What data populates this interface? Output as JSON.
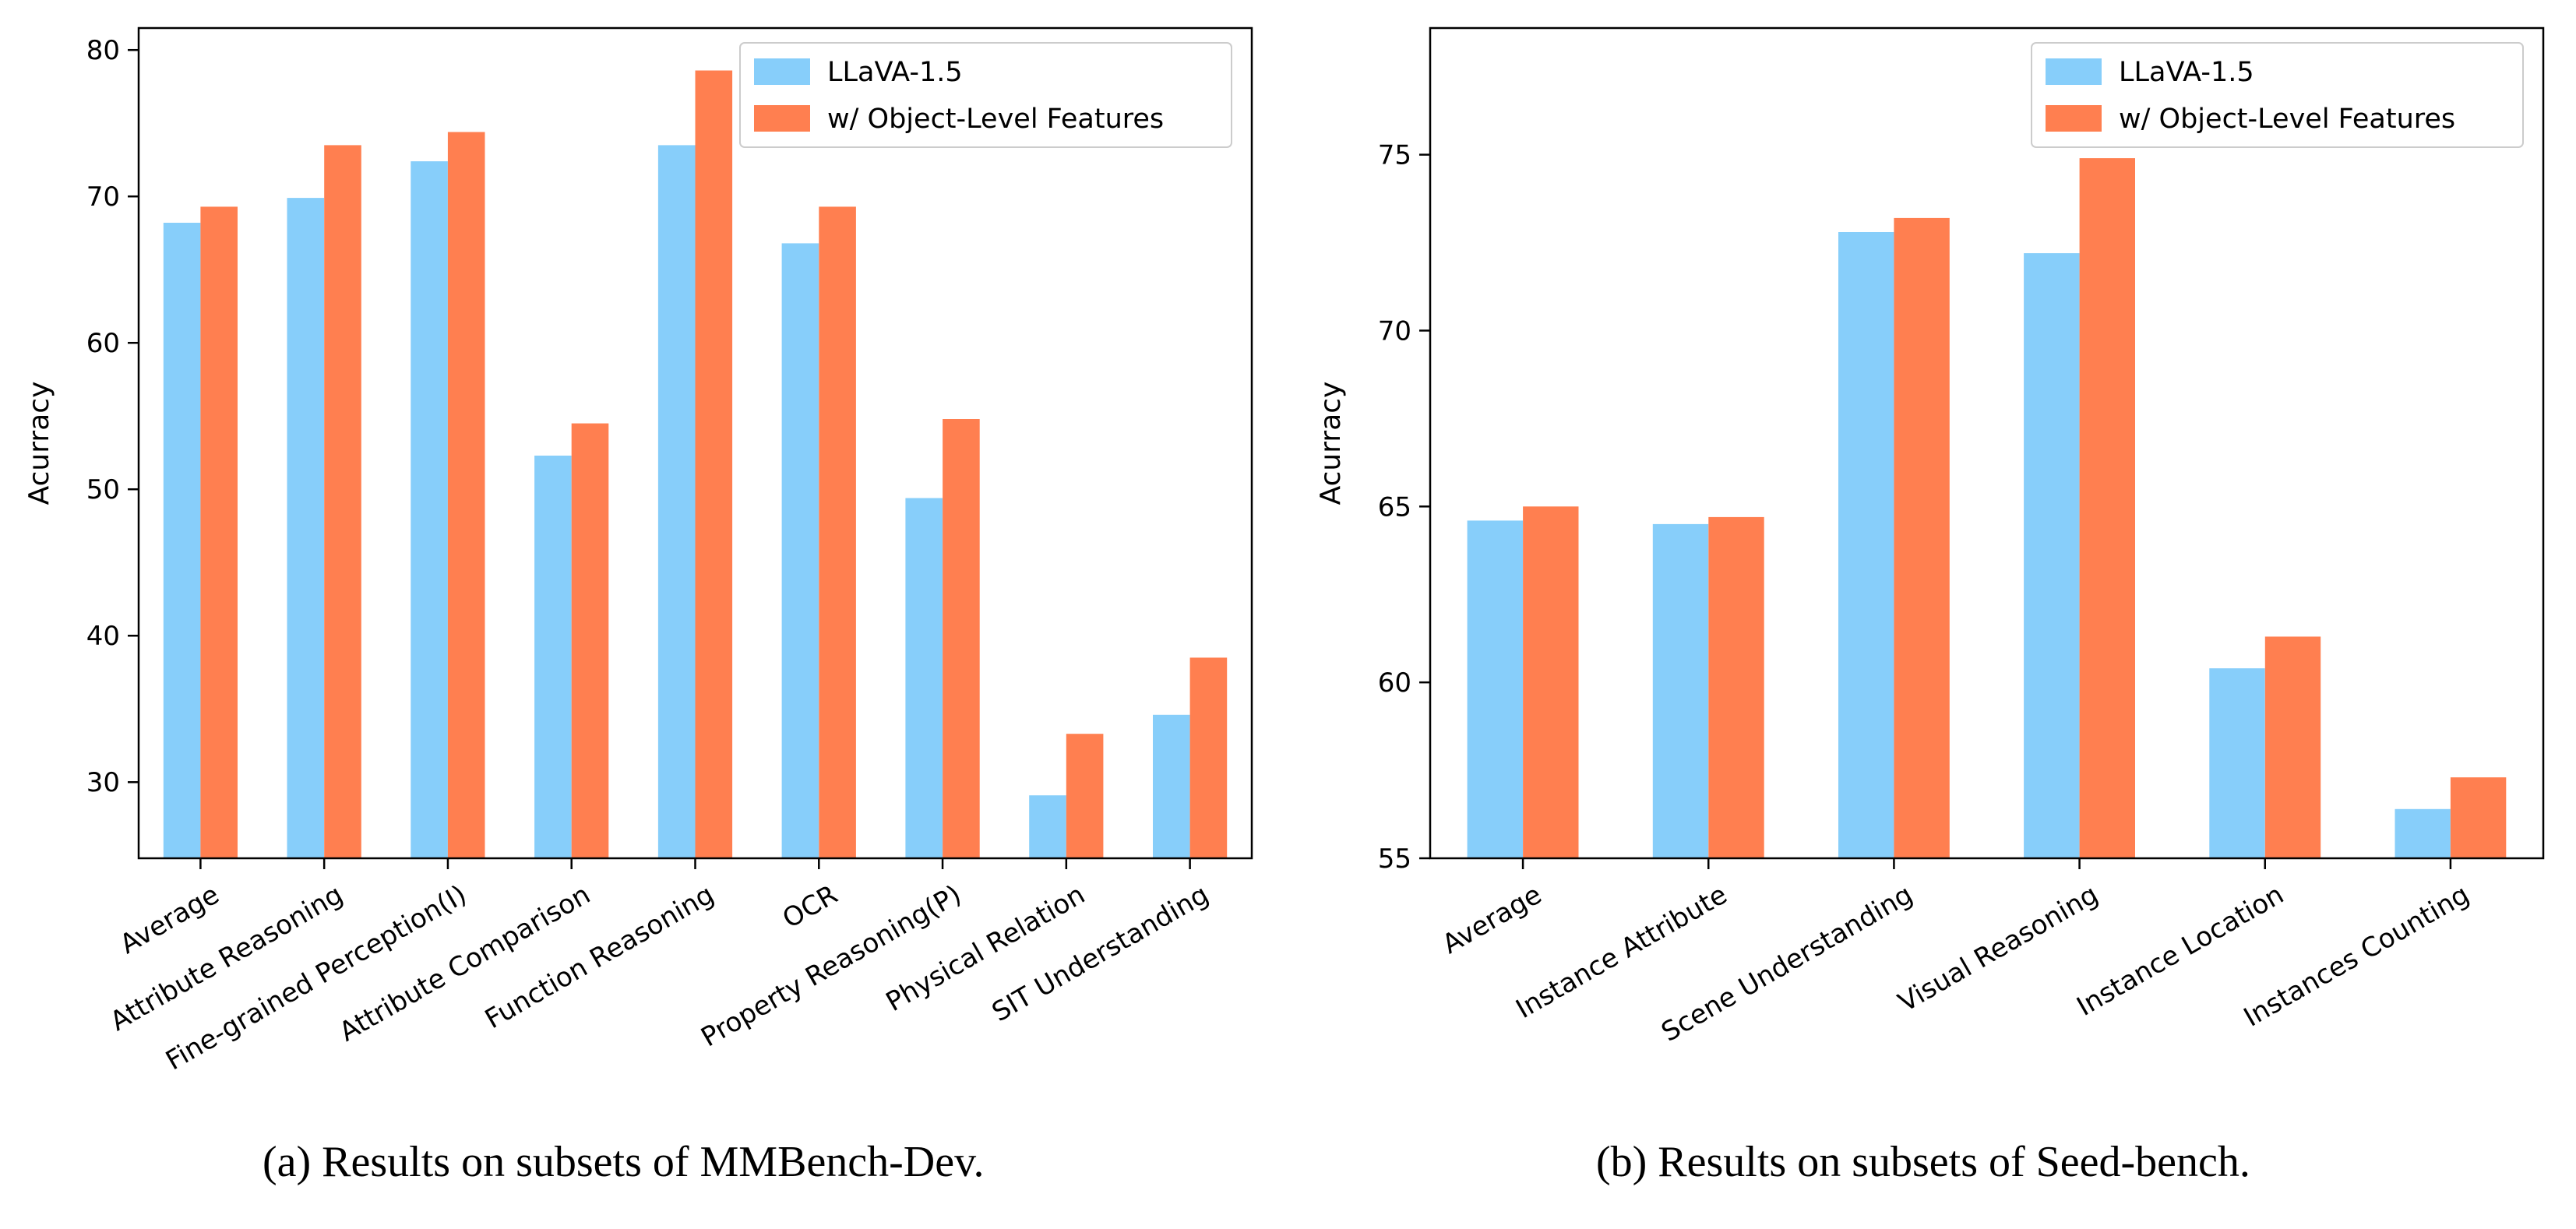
{
  "chart_data": [
    {
      "type": "bar",
      "ylabel": "Acurracy",
      "ylim": [
        24.8,
        81.5
      ],
      "yticks": [
        30,
        40,
        50,
        60,
        70,
        80
      ],
      "categories": [
        "Average",
        "Attribute Reasoning",
        "Fine-grained Perception(I)",
        "Attribute Comparison",
        "Function Reasoning",
        "OCR",
        "Property Reasoning(P)",
        "Physical Relation",
        "SIT Understanding"
      ],
      "series": [
        {
          "name": "LLaVA-1.5",
          "color": "#87CEFA",
          "values": [
            68.2,
            69.9,
            72.4,
            52.3,
            73.5,
            66.8,
            49.4,
            29.1,
            34.6
          ]
        },
        {
          "name": "w/ Object-Level Features",
          "color": "#FF7F50",
          "values": [
            69.3,
            73.5,
            74.4,
            54.5,
            78.6,
            69.3,
            54.8,
            33.3,
            38.5
          ]
        }
      ],
      "legend": "top-right",
      "grid": false,
      "caption": "(a) Results on subsets of MMBench-Dev."
    },
    {
      "type": "bar",
      "ylabel": "Acurracy",
      "ylim": [
        55,
        78.6
      ],
      "yticks": [
        55,
        60,
        65,
        70,
        75
      ],
      "categories": [
        "Average",
        "Instance Attribute",
        "Scene Understanding",
        "Visual Reasoning",
        "Instance Location",
        "Instances Counting"
      ],
      "series": [
        {
          "name": "LLaVA-1.5",
          "color": "#87CEFA",
          "values": [
            64.6,
            64.5,
            72.8,
            72.2,
            60.4,
            56.4
          ]
        },
        {
          "name": "w/ Object-Level Features",
          "color": "#FF7F50",
          "values": [
            65.0,
            64.7,
            73.2,
            74.9,
            61.3,
            57.3
          ]
        }
      ],
      "legend": "top-right",
      "grid": false,
      "caption": "(b) Results on subsets of Seed-bench."
    }
  ]
}
